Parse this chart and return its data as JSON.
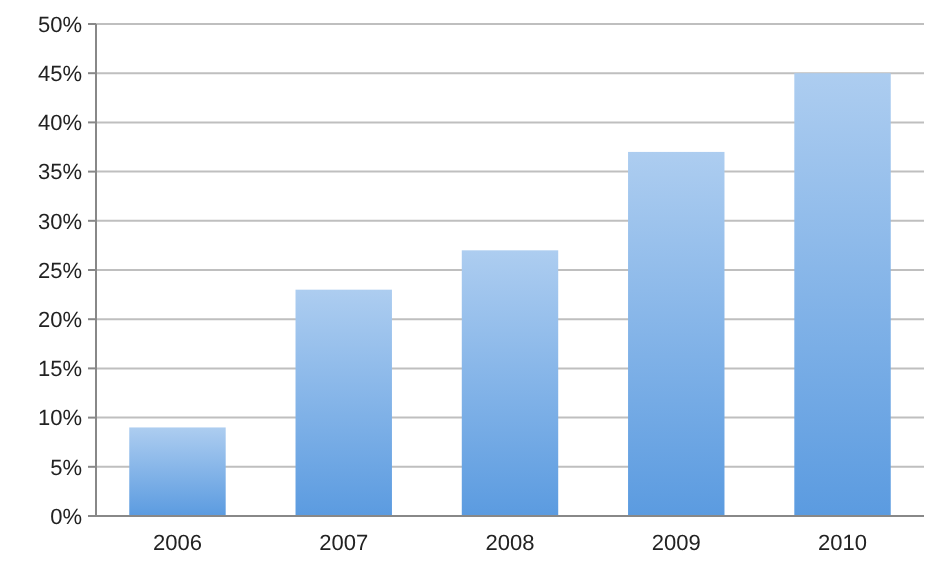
{
  "chart_data": {
    "type": "bar",
    "categories": [
      "2006",
      "2007",
      "2008",
      "2009",
      "2010"
    ],
    "values": [
      9,
      23,
      27,
      37,
      45
    ],
    "color": "#5b9be0",
    "ylim": [
      0,
      50
    ],
    "yticks": [
      {
        "value": 0,
        "label": "0%"
      },
      {
        "value": 5,
        "label": "5%"
      },
      {
        "value": 10,
        "label": "10%"
      },
      {
        "value": 15,
        "label": "15%"
      },
      {
        "value": 20,
        "label": "20%"
      },
      {
        "value": 25,
        "label": "25%"
      },
      {
        "value": 30,
        "label": "30%"
      },
      {
        "value": 35,
        "label": "35%"
      },
      {
        "value": 40,
        "label": "40%"
      },
      {
        "value": 45,
        "label": "45%"
      },
      {
        "value": 50,
        "label": "50%"
      }
    ],
    "grid": "y"
  }
}
